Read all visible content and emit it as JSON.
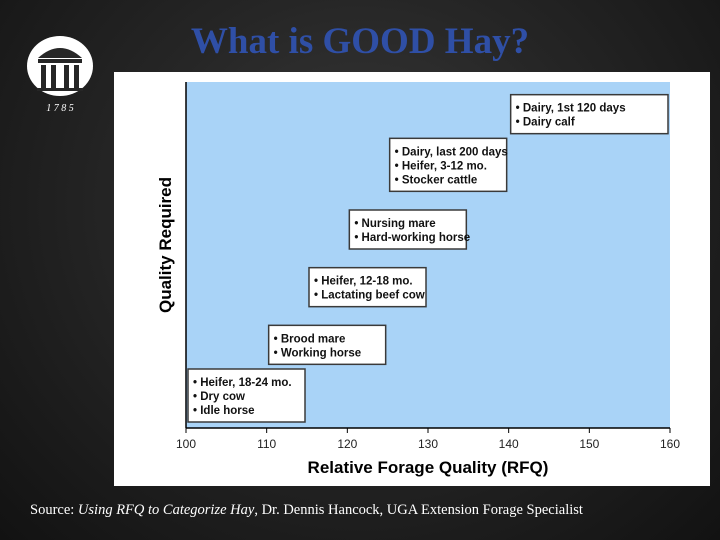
{
  "slide": {
    "title": "What is GOOD Hay?",
    "logo_year": "1 7 8 5",
    "source_prefix": "Source: ",
    "source_title": "Using RFQ to Categorize Hay",
    "source_suffix": ", Dr. Dennis Hancock, UGA Extension Forage Specialist"
  },
  "colors": {
    "plot_background": "#a9d3f7",
    "box_border": "#3a3a3a",
    "title_color": "#2f4fa6"
  },
  "chart_data": {
    "type": "bar",
    "title": "",
    "xlabel": "Relative Forage Quality (RFQ)",
    "ylabel": "Quality Required",
    "xlim": [
      100,
      160
    ],
    "x_ticks": [
      "100",
      "110",
      "120",
      "130",
      "140",
      "150",
      "160"
    ],
    "grid": false,
    "categories": [
      {
        "items": [
          "Heifer, 18-24 mo.",
          "Dry cow",
          "Idle horse"
        ],
        "rfq_min": 100,
        "rfq_max": 115
      },
      {
        "items": [
          "Brood mare",
          "Working horse"
        ],
        "rfq_min": 110,
        "rfq_max": 125
      },
      {
        "items": [
          "Heifer, 12-18 mo.",
          "Lactating beef cow"
        ],
        "rfq_min": 115,
        "rfq_max": 130
      },
      {
        "items": [
          "Nursing mare",
          "Hard-working horse"
        ],
        "rfq_min": 120,
        "rfq_max": 135
      },
      {
        "items": [
          "Dairy, last 200 days",
          "Heifer, 3-12 mo.",
          "Stocker cattle"
        ],
        "rfq_min": 125,
        "rfq_max": 140
      },
      {
        "items": [
          "Dairy, 1st 120 days",
          "Dairy calf"
        ],
        "rfq_min": 140,
        "rfq_max": 160
      }
    ]
  }
}
